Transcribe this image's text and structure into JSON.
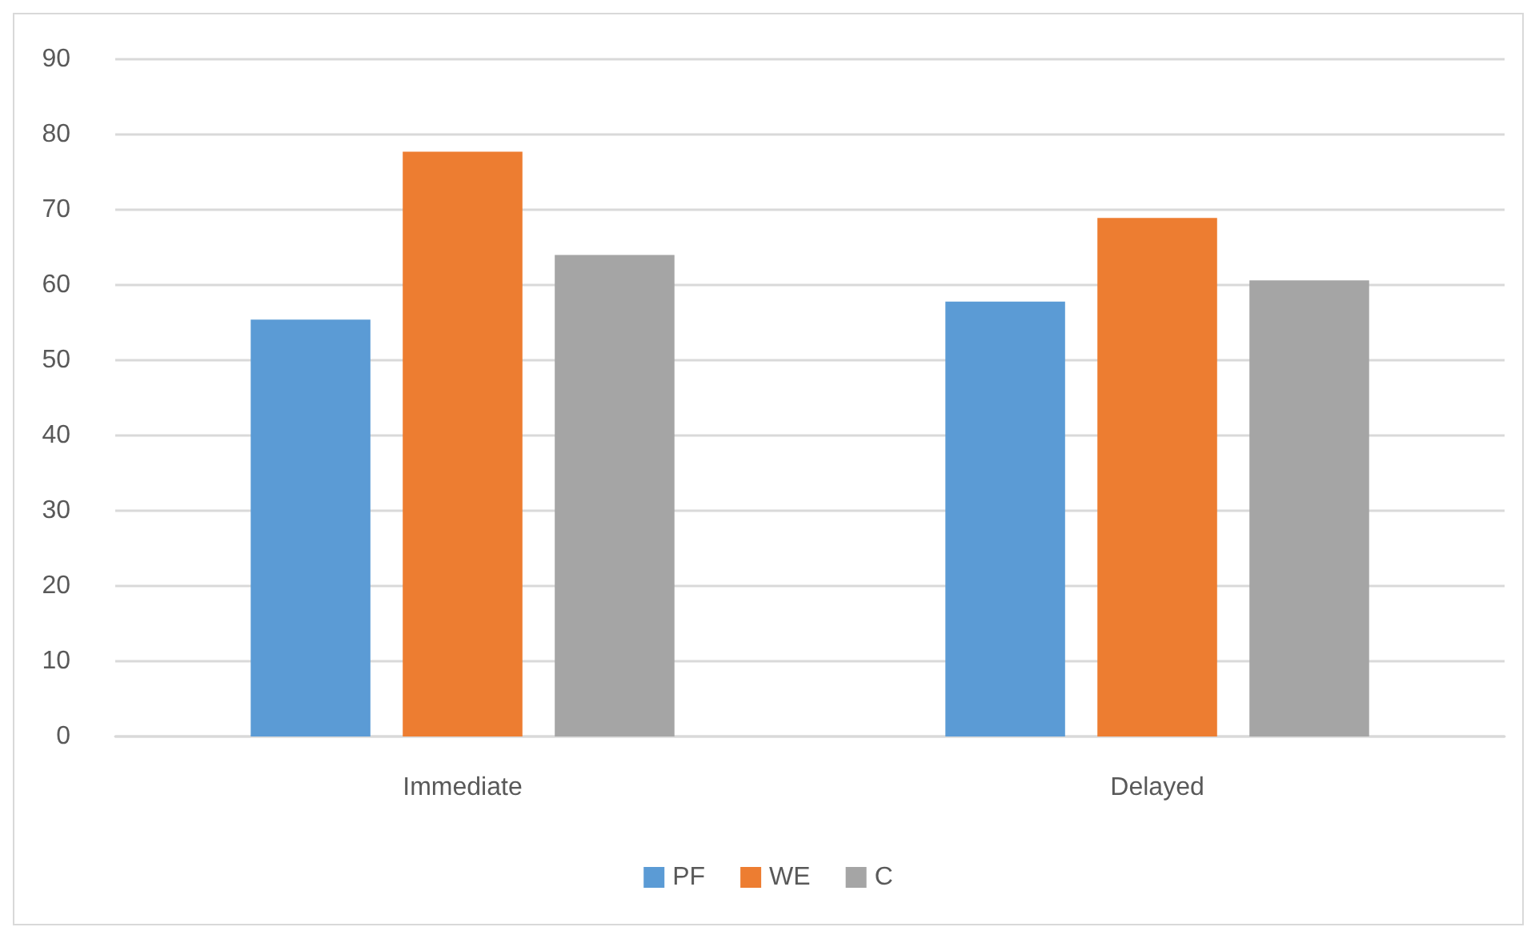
{
  "chart_data": {
    "type": "bar",
    "categories": [
      "Immediate",
      "Delayed"
    ],
    "series": [
      {
        "name": "PF",
        "color": "#5b9bd5",
        "values": [
          55.4,
          57.8
        ]
      },
      {
        "name": "WE",
        "color": "#ed7d31",
        "values": [
          77.7,
          68.9
        ]
      },
      {
        "name": "C",
        "color": "#a5a5a5",
        "values": [
          64.0,
          60.6
        ]
      }
    ],
    "ylim": [
      0,
      90
    ],
    "yticks": [
      0,
      10,
      20,
      30,
      40,
      50,
      60,
      70,
      80,
      90
    ],
    "grid": "y",
    "legend": "bottom"
  }
}
